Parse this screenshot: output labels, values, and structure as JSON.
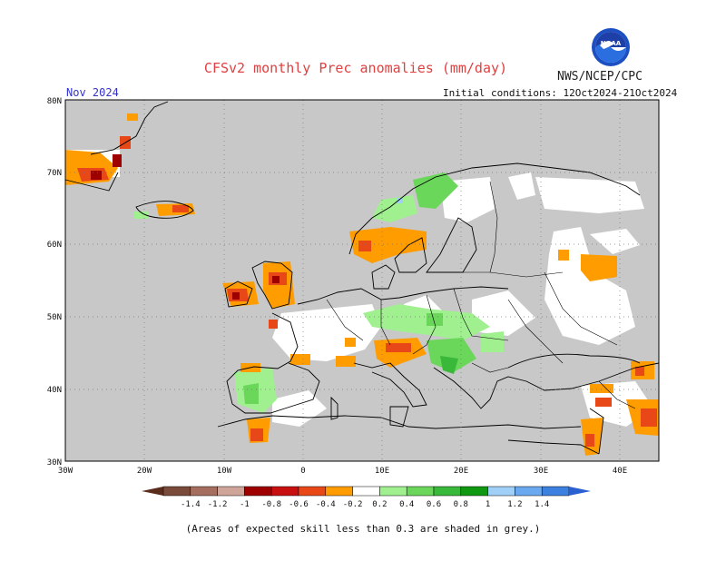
{
  "header": {
    "title": "CFSv2 monthly Prec anomalies (mm/day)",
    "agency": "NWS/NCEP/CPC",
    "logo_text": "NOAA",
    "month": "Nov 2024",
    "initial_conditions": "Initial conditions: 12Oct2024-21Oct2024"
  },
  "map": {
    "region": "Europe",
    "lon_range": [
      -30,
      45
    ],
    "lat_range": [
      30,
      80
    ],
    "lat_ticks": [
      "30N",
      "40N",
      "50N",
      "60N",
      "70N",
      "80N"
    ],
    "lon_ticks": [
      "30W",
      "20W",
      "10W",
      "0",
      "10E",
      "20E",
      "30E",
      "40E"
    ],
    "low_skill_color": "#c8c8c8",
    "land_outline_color": "#000000",
    "grid": "dotted"
  },
  "colorbar": {
    "labels": [
      "-1.4",
      "-1.2",
      "-1",
      "-0.8",
      "-0.6",
      "-0.4",
      "-0.2",
      "0.2",
      "0.4",
      "0.6",
      "0.8",
      "1",
      "1.2",
      "1.4"
    ],
    "colors": [
      "#7a4a3a",
      "#a66e5e",
      "#cfa59a",
      "#9e0000",
      "#c81010",
      "#e84818",
      "#ff9d00",
      "#ffffff",
      "#a0f090",
      "#6ad65a",
      "#3ab83a",
      "#109810",
      "#a0d0f8",
      "#6aa8f0",
      "#3c80e0"
    ],
    "arrow_left_color": "#5a2c1c",
    "arrow_right_color": "#2a60d0"
  },
  "footnote": "(Areas of expected skill less than 0.3 are shaded in grey.)"
}
